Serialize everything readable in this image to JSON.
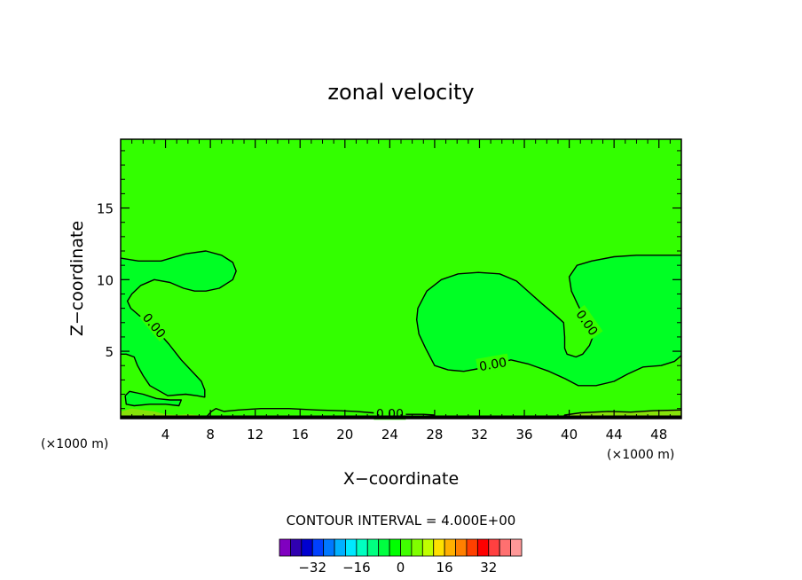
{
  "chart_data": {
    "type": "contour",
    "title": "zonal velocity",
    "xlabel": "X−coordinate",
    "ylabel": "Z−coordinate",
    "x_unit_left": "(×1000 m)",
    "x_unit_right": "(×1000 m)",
    "xlim": [
      0,
      50
    ],
    "ylim": [
      0.3,
      19.8
    ],
    "x_ticks": [
      4,
      8,
      12,
      16,
      20,
      24,
      28,
      32,
      36,
      40,
      44,
      48
    ],
    "x_tick_labels": [
      "4",
      "8",
      "12",
      "16",
      "20",
      "24",
      "28",
      "32",
      "36",
      "40",
      "44",
      "48"
    ],
    "y_ticks": [
      5,
      10,
      15
    ],
    "y_tick_labels": [
      "5",
      "10",
      "15"
    ],
    "contour_interval_text": "CONTOUR INTERVAL = 4.000E+00",
    "background_color": "#33ff00",
    "contour_labels": [
      {
        "text": "0.00",
        "x": 3.0,
        "y": 6.8,
        "angle": 50
      },
      {
        "text": "0.00",
        "x": 33.2,
        "y": 4.1,
        "angle": -10
      },
      {
        "text": "0.00",
        "x": 41.6,
        "y": 7.0,
        "angle": 55
      },
      {
        "text": "0.00",
        "x": 24.0,
        "y": 0.65,
        "angle": 0
      }
    ],
    "regions": [
      {
        "name": "left-negative-region",
        "fill": "#00ff24",
        "points": [
          [
            0,
            11.5
          ],
          [
            1.6,
            11.3
          ],
          [
            3.6,
            11.3
          ],
          [
            5.8,
            11.8
          ],
          [
            7.6,
            12.0
          ],
          [
            9.0,
            11.7
          ],
          [
            10.0,
            11.2
          ],
          [
            10.3,
            10.6
          ],
          [
            10.0,
            10.0
          ],
          [
            8.8,
            9.4
          ],
          [
            7.6,
            9.2
          ],
          [
            6.6,
            9.2
          ],
          [
            5.6,
            9.4
          ],
          [
            4.4,
            9.8
          ],
          [
            3.0,
            10.0
          ],
          [
            1.8,
            9.6
          ],
          [
            1.0,
            9.0
          ],
          [
            0.6,
            8.5
          ],
          [
            0.9,
            8.0
          ],
          [
            1.5,
            7.6
          ],
          [
            2.4,
            7.0
          ],
          [
            3.4,
            6.3
          ],
          [
            4.3,
            5.5
          ],
          [
            5.4,
            4.4
          ],
          [
            6.6,
            3.4
          ],
          [
            7.2,
            2.9
          ],
          [
            7.5,
            2.3
          ],
          [
            7.5,
            1.8
          ],
          [
            6.8,
            1.9
          ],
          [
            5.8,
            2.0
          ],
          [
            4.2,
            1.9
          ],
          [
            2.6,
            2.6
          ],
          [
            2.0,
            3.3
          ],
          [
            1.5,
            4.0
          ],
          [
            1.2,
            4.6
          ],
          [
            0.5,
            4.8
          ],
          [
            0,
            4.8
          ]
        ]
      },
      {
        "name": "bottom-left-negative-strip",
        "fill": "#00ff24",
        "points": [
          [
            0.4,
            1.9
          ],
          [
            0.8,
            2.2
          ],
          [
            2.0,
            2.0
          ],
          [
            3.2,
            1.7
          ],
          [
            4.4,
            1.6
          ],
          [
            5.4,
            1.6
          ],
          [
            5.2,
            1.2
          ],
          [
            4.0,
            1.3
          ],
          [
            2.6,
            1.3
          ],
          [
            1.2,
            1.2
          ],
          [
            0.5,
            1.3
          ]
        ]
      },
      {
        "name": "central-negative-region",
        "fill": "#00ff24",
        "points": [
          [
            26.5,
            8.0
          ],
          [
            27.3,
            9.2
          ],
          [
            28.6,
            10.0
          ],
          [
            30.1,
            10.4
          ],
          [
            31.9,
            10.5
          ],
          [
            33.8,
            10.4
          ],
          [
            35.3,
            9.9
          ],
          [
            36.6,
            9.0
          ],
          [
            37.6,
            8.3
          ],
          [
            38.8,
            7.5
          ],
          [
            39.5,
            7.0
          ],
          [
            39.6,
            6.0
          ],
          [
            39.6,
            5.2
          ],
          [
            39.8,
            4.8
          ],
          [
            40.6,
            4.6
          ],
          [
            41.2,
            4.8
          ],
          [
            41.8,
            5.4
          ],
          [
            42.2,
            6.2
          ],
          [
            41.8,
            6.8
          ],
          [
            41.4,
            7.3
          ],
          [
            40.8,
            8.2
          ],
          [
            40.2,
            9.2
          ],
          [
            40.0,
            10.2
          ],
          [
            40.7,
            11.0
          ],
          [
            42.0,
            11.3
          ],
          [
            44.0,
            11.6
          ],
          [
            46.0,
            11.7
          ],
          [
            50,
            11.7
          ],
          [
            50,
            4.7
          ],
          [
            49.4,
            4.3
          ],
          [
            48.2,
            4.0
          ],
          [
            46.6,
            3.9
          ],
          [
            45.2,
            3.4
          ],
          [
            44.0,
            2.9
          ],
          [
            42.4,
            2.6
          ],
          [
            40.8,
            2.6
          ],
          [
            39.6,
            3.1
          ],
          [
            38.2,
            3.6
          ],
          [
            36.4,
            4.1
          ],
          [
            34.8,
            4.4
          ],
          [
            33.4,
            4.1
          ],
          [
            32.0,
            3.8
          ],
          [
            30.6,
            3.6
          ],
          [
            29.2,
            3.7
          ],
          [
            28.0,
            4.0
          ],
          [
            27.2,
            5.2
          ],
          [
            26.6,
            6.2
          ],
          [
            26.4,
            7.2
          ]
        ]
      },
      {
        "name": "bottom-positive-strip",
        "fill": "#87e20a",
        "points": [
          [
            0,
            0.3
          ],
          [
            0,
            0.8
          ],
          [
            1.0,
            1.0
          ],
          [
            3.0,
            0.8
          ],
          [
            4.0,
            0.6
          ],
          [
            5.0,
            0.55
          ],
          [
            6.0,
            0.6
          ],
          [
            7.5,
            0.5
          ],
          [
            8.0,
            0.3
          ]
        ]
      },
      {
        "name": "bottom-positive-strip-right",
        "fill": "#87e20a",
        "points": [
          [
            39.4,
            0.3
          ],
          [
            39.6,
            0.55
          ],
          [
            41.0,
            0.7
          ],
          [
            43.5,
            0.8
          ],
          [
            45.5,
            0.75
          ],
          [
            47.5,
            0.85
          ],
          [
            50,
            0.9
          ],
          [
            50,
            0.3
          ]
        ]
      }
    ],
    "contour_lines": [
      {
        "name": "contour-zero-left",
        "points": [
          [
            0,
            11.5
          ],
          [
            1.6,
            11.3
          ],
          [
            3.6,
            11.3
          ],
          [
            5.8,
            11.8
          ],
          [
            7.6,
            12.0
          ],
          [
            9.0,
            11.7
          ],
          [
            10.0,
            11.2
          ],
          [
            10.3,
            10.6
          ],
          [
            10.0,
            10.0
          ],
          [
            8.8,
            9.4
          ],
          [
            7.6,
            9.2
          ],
          [
            6.6,
            9.2
          ],
          [
            5.6,
            9.4
          ],
          [
            4.4,
            9.8
          ],
          [
            3.0,
            10.0
          ],
          [
            1.8,
            9.6
          ],
          [
            1.0,
            9.0
          ],
          [
            0.6,
            8.5
          ],
          [
            0.9,
            8.0
          ],
          [
            1.5,
            7.6
          ],
          [
            2.4,
            7.0
          ],
          [
            3.4,
            6.3
          ],
          [
            4.3,
            5.5
          ],
          [
            5.4,
            4.4
          ],
          [
            6.6,
            3.4
          ],
          [
            7.2,
            2.9
          ],
          [
            7.5,
            2.3
          ],
          [
            7.5,
            1.8
          ],
          [
            6.8,
            1.9
          ],
          [
            5.8,
            2.0
          ],
          [
            4.2,
            1.9
          ],
          [
            2.6,
            2.6
          ],
          [
            2.0,
            3.3
          ],
          [
            1.5,
            4.0
          ],
          [
            1.2,
            4.6
          ],
          [
            0.5,
            4.8
          ],
          [
            0,
            4.8
          ]
        ]
      },
      {
        "name": "contour-zero-bottom-left",
        "points": [
          [
            0.4,
            1.9
          ],
          [
            0.8,
            2.2
          ],
          [
            2.0,
            2.0
          ],
          [
            3.2,
            1.7
          ],
          [
            4.4,
            1.6
          ],
          [
            5.4,
            1.6
          ],
          [
            5.2,
            1.2
          ],
          [
            4.0,
            1.3
          ],
          [
            2.6,
            1.3
          ],
          [
            1.2,
            1.2
          ],
          [
            0.5,
            1.3
          ],
          [
            0.4,
            1.9
          ]
        ]
      },
      {
        "name": "contour-zero-central",
        "points": [
          [
            50,
            4.7
          ],
          [
            49.4,
            4.3
          ],
          [
            48.2,
            4.0
          ],
          [
            46.6,
            3.9
          ],
          [
            45.2,
            3.4
          ],
          [
            44.0,
            2.9
          ],
          [
            42.4,
            2.6
          ],
          [
            40.8,
            2.6
          ],
          [
            39.6,
            3.1
          ],
          [
            38.2,
            3.6
          ],
          [
            36.4,
            4.1
          ],
          [
            34.8,
            4.4
          ],
          [
            33.4,
            4.1
          ],
          [
            32.0,
            3.8
          ],
          [
            30.6,
            3.6
          ],
          [
            29.2,
            3.7
          ],
          [
            28.0,
            4.0
          ],
          [
            27.2,
            5.2
          ],
          [
            26.6,
            6.2
          ],
          [
            26.4,
            7.2
          ],
          [
            26.5,
            8.0
          ],
          [
            27.3,
            9.2
          ],
          [
            28.6,
            10.0
          ],
          [
            30.1,
            10.4
          ],
          [
            31.9,
            10.5
          ],
          [
            33.8,
            10.4
          ],
          [
            35.3,
            9.9
          ],
          [
            36.6,
            9.0
          ],
          [
            37.6,
            8.3
          ],
          [
            38.8,
            7.5
          ],
          [
            39.5,
            7.0
          ],
          [
            39.6,
            6.0
          ],
          [
            39.6,
            5.2
          ],
          [
            39.8,
            4.8
          ],
          [
            40.6,
            4.6
          ],
          [
            41.2,
            4.8
          ],
          [
            41.8,
            5.4
          ],
          [
            42.2,
            6.2
          ],
          [
            41.8,
            6.8
          ],
          [
            41.4,
            7.3
          ],
          [
            40.8,
            8.2
          ],
          [
            40.2,
            9.2
          ],
          [
            40.0,
            10.2
          ],
          [
            40.7,
            11.0
          ],
          [
            42.0,
            11.3
          ],
          [
            44.0,
            11.6
          ],
          [
            46.0,
            11.7
          ],
          [
            50,
            11.7
          ]
        ]
      },
      {
        "name": "contour-zero-bottom",
        "points": [
          [
            7.5,
            0.3
          ],
          [
            8.1,
            0.8
          ],
          [
            8.5,
            1.0
          ],
          [
            9.2,
            0.8
          ],
          [
            10.5,
            0.9
          ],
          [
            12.5,
            1.0
          ],
          [
            15.0,
            1.0
          ],
          [
            17.5,
            0.9
          ],
          [
            19.5,
            0.85
          ],
          [
            21.0,
            0.8
          ],
          [
            22.5,
            0.7
          ],
          [
            24.0,
            0.65
          ],
          [
            25.5,
            0.6
          ],
          [
            27.0,
            0.6
          ],
          [
            28.0,
            0.55
          ]
        ]
      },
      {
        "name": "contour-zero-bottom-right",
        "points": [
          [
            39.4,
            0.3
          ],
          [
            39.6,
            0.55
          ],
          [
            41.0,
            0.7
          ],
          [
            43.5,
            0.8
          ],
          [
            45.5,
            0.75
          ],
          [
            47.5,
            0.85
          ],
          [
            50,
            0.9
          ]
        ]
      }
    ],
    "colorbar": {
      "colors": [
        "#8000c0",
        "#3000b0",
        "#0000d0",
        "#0040ff",
        "#0078ff",
        "#00b0ff",
        "#00e8ff",
        "#00ffc0",
        "#00ff80",
        "#00ff40",
        "#00ff00",
        "#40ff00",
        "#80ff00",
        "#c0ff00",
        "#ffe000",
        "#ffb000",
        "#ff8000",
        "#ff4000",
        "#ff0000",
        "#ff4040",
        "#ff7070",
        "#ff9898"
      ],
      "tick_values": [
        -32,
        -16,
        0,
        16,
        32
      ],
      "tick_labels": [
        "−32",
        "−16",
        "0",
        "16",
        "32"
      ],
      "range": [
        -44,
        44
      ]
    }
  }
}
